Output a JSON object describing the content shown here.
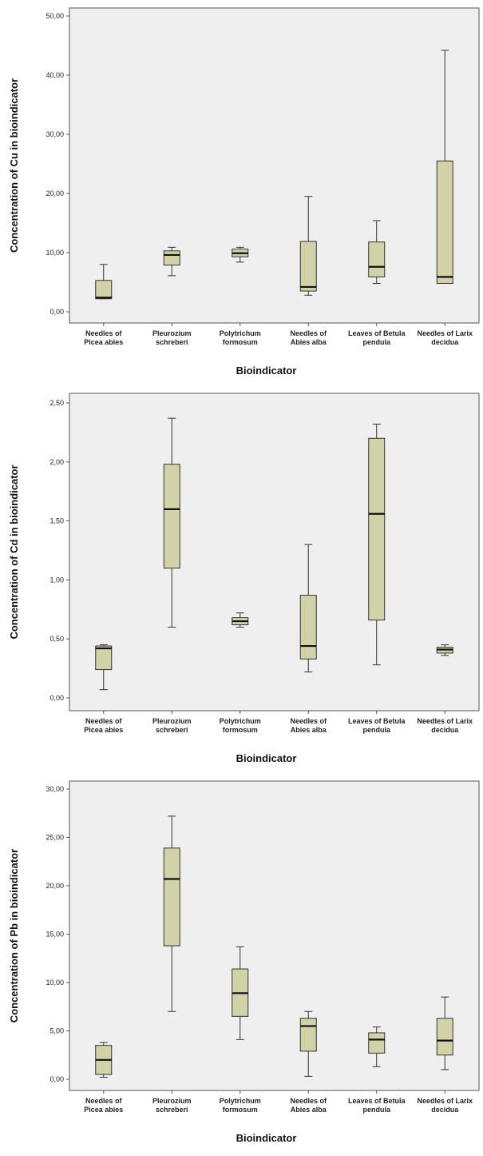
{
  "chart_data": [
    {
      "type": "box",
      "ylabel": "Concentration of Cu in bioindicator",
      "xlabel": "Bioindicator",
      "ylim": [
        0,
        50
      ],
      "yticks": [
        "0,00",
        "10,00",
        "20,00",
        "30,00",
        "40,00",
        "50,00"
      ],
      "ytick_values": [
        0,
        10,
        20,
        30,
        40,
        50
      ],
      "categories": [
        [
          "Needles of",
          "Picea abies"
        ],
        [
          "Pleurozium",
          "schreberi"
        ],
        [
          "Polytrichum",
          "formosum"
        ],
        [
          "Needles of",
          "Abies alba"
        ],
        [
          "Leaves of Betula",
          "pendula"
        ],
        [
          "Needles of Larix",
          "decidua"
        ]
      ],
      "boxes": [
        {
          "min": 2.2,
          "q1": 2.2,
          "median": 2.4,
          "q3": 5.3,
          "max": 8.0
        },
        {
          "min": 6.1,
          "q1": 7.9,
          "median": 9.6,
          "q3": 10.3,
          "max": 10.9
        },
        {
          "min": 8.4,
          "q1": 9.3,
          "median": 9.9,
          "q3": 10.6,
          "max": 10.9
        },
        {
          "min": 2.8,
          "q1": 3.5,
          "median": 4.2,
          "q3": 11.9,
          "max": 19.5
        },
        {
          "min": 4.8,
          "q1": 5.9,
          "median": 7.6,
          "q3": 11.8,
          "max": 15.4
        },
        {
          "min": 4.8,
          "q1": 4.8,
          "median": 5.9,
          "q3": 25.5,
          "max": 44.2
        }
      ]
    },
    {
      "type": "box",
      "ylabel": "Concentration of Cd in bioindicator",
      "xlabel": "Bioindicator",
      "ylim": [
        0,
        2.5
      ],
      "yticks": [
        "0,00",
        "0,50",
        "1,00",
        "1,50",
        "2,00",
        "2,50"
      ],
      "ytick_values": [
        0,
        0.5,
        1.0,
        1.5,
        2.0,
        2.5
      ],
      "categories": [
        [
          "Needles of",
          "Picea abies"
        ],
        [
          "Pleurozium",
          "schreberi"
        ],
        [
          "Polytrichum",
          "formosum"
        ],
        [
          "Needles of",
          "Abies alba"
        ],
        [
          "Leaves of Betula",
          "pendula"
        ],
        [
          "Needles of Larix",
          "decidua"
        ]
      ],
      "boxes": [
        {
          "min": 0.07,
          "q1": 0.24,
          "median": 0.42,
          "q3": 0.44,
          "max": 0.45
        },
        {
          "min": 0.6,
          "q1": 1.1,
          "median": 1.6,
          "q3": 1.98,
          "max": 2.37
        },
        {
          "min": 0.6,
          "q1": 0.62,
          "median": 0.65,
          "q3": 0.68,
          "max": 0.72
        },
        {
          "min": 0.22,
          "q1": 0.33,
          "median": 0.44,
          "q3": 0.87,
          "max": 1.3
        },
        {
          "min": 0.28,
          "q1": 0.66,
          "median": 1.56,
          "q3": 2.2,
          "max": 2.32
        },
        {
          "min": 0.36,
          "q1": 0.38,
          "median": 0.41,
          "q3": 0.43,
          "max": 0.45
        }
      ]
    },
    {
      "type": "box",
      "ylabel": "Concentration of Pb in bioindicator",
      "xlabel": "Bioindicator",
      "ylim": [
        0,
        30
      ],
      "yticks": [
        "0,00",
        "5,00",
        "10,00",
        "15,00",
        "20,00",
        "25,00",
        "30,00"
      ],
      "ytick_values": [
        0,
        5,
        10,
        15,
        20,
        25,
        30
      ],
      "categories": [
        [
          "Needles of",
          "Picea abies"
        ],
        [
          "Pleurozium",
          "schreberi"
        ],
        [
          "Polytrichum",
          "formosum"
        ],
        [
          "Needles of",
          "Abies alba"
        ],
        [
          "Leaves of Betula",
          "pendula"
        ],
        [
          "Needles of Larix",
          "decidua"
        ]
      ],
      "boxes": [
        {
          "min": 0.2,
          "q1": 0.5,
          "median": 2.0,
          "q3": 3.5,
          "max": 3.8
        },
        {
          "min": 7.0,
          "q1": 13.8,
          "median": 20.7,
          "q3": 23.9,
          "max": 27.2
        },
        {
          "min": 4.1,
          "q1": 6.5,
          "median": 8.9,
          "q3": 11.4,
          "max": 13.7
        },
        {
          "min": 0.3,
          "q1": 2.9,
          "median": 5.5,
          "q3": 6.3,
          "max": 7.0
        },
        {
          "min": 1.3,
          "q1": 2.7,
          "median": 4.1,
          "q3": 4.8,
          "max": 5.4
        },
        {
          "min": 1.0,
          "q1": 2.5,
          "median": 4.0,
          "q3": 6.3,
          "max": 8.5
        }
      ]
    }
  ]
}
